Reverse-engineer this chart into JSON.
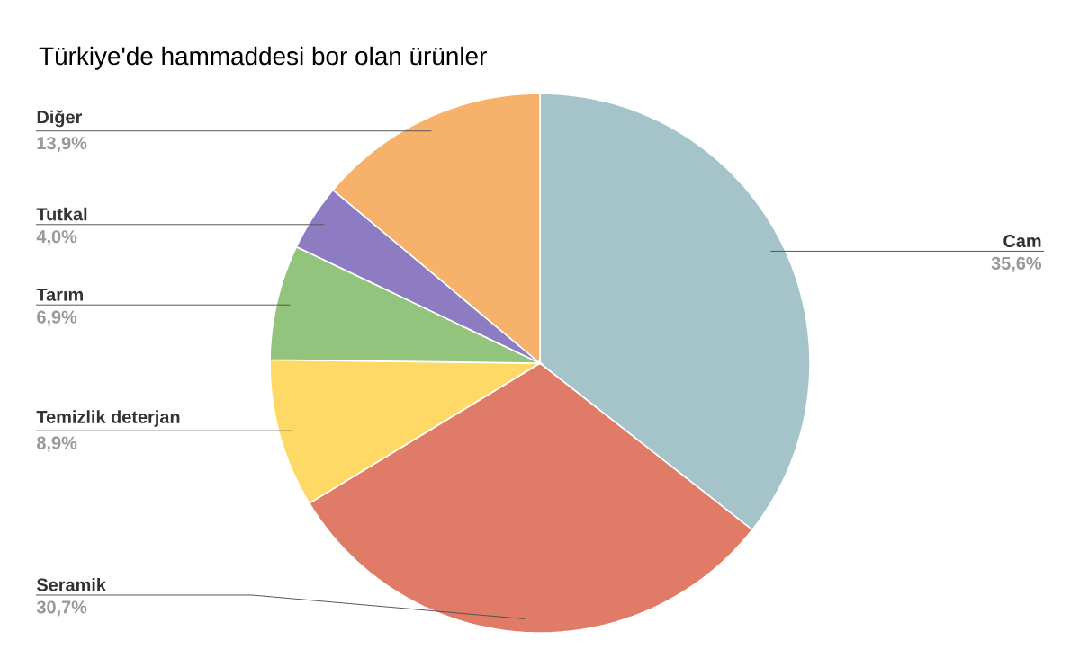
{
  "chart_data": {
    "type": "pie",
    "title": "Türkiye'de hammaddesi bor olan ürünler",
    "categories": [
      "Cam",
      "Seramik",
      "Temizlik deterjan",
      "Tarım",
      "Tutkal",
      "Diğer"
    ],
    "values": [
      35.6,
      30.7,
      8.9,
      6.9,
      4.0,
      13.9
    ],
    "colors": [
      "#a5c4c9",
      "#e07b67",
      "#ffd966",
      "#93c47d",
      "#8e7cc3",
      "#f6b26b"
    ],
    "value_labels": [
      "35,6%",
      "30,7%",
      "8,9%",
      "6,9%",
      "4,0%",
      "13,9%"
    ]
  }
}
